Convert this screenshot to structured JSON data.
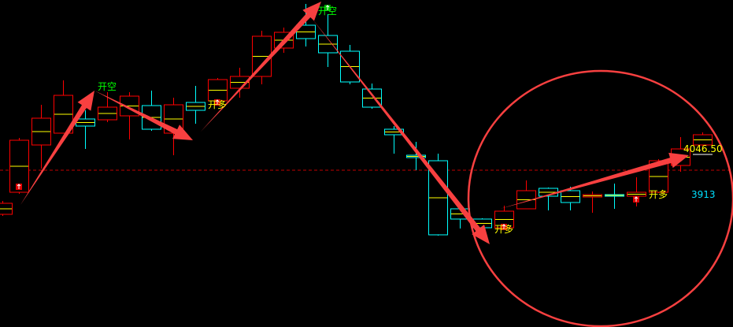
{
  "chart_data": {
    "type": "candlestick",
    "title": "",
    "ylim": [
      3828,
      4243
    ],
    "grid": false,
    "colors": {
      "up": "#ff0000",
      "down": "#00ffff",
      "mid": "#ffff00",
      "reference_line": "#c00000",
      "arrow": "#f84040"
    },
    "reference_price": 4027,
    "candles": [
      {
        "o": 3971,
        "h": 3988,
        "l": 3969,
        "c": 3985
      },
      {
        "o": 3999,
        "h": 4068,
        "l": 3997,
        "c": 4065
      },
      {
        "o": 4059,
        "h": 4110,
        "l": 4029,
        "c": 4093
      },
      {
        "o": 4074,
        "h": 4141,
        "l": 4074,
        "c": 4122
      },
      {
        "o": 4092,
        "h": 4103,
        "l": 4054,
        "c": 4083
      },
      {
        "o": 4091,
        "h": 4126,
        "l": 4088,
        "c": 4107
      },
      {
        "o": 4096,
        "h": 4126,
        "l": 4066,
        "c": 4121
      },
      {
        "o": 4109,
        "h": 4128,
        "l": 4077,
        "c": 4079
      },
      {
        "o": 4074,
        "h": 4119,
        "l": 4046,
        "c": 4110
      },
      {
        "o": 4113,
        "h": 4134,
        "l": 4086,
        "c": 4103
      },
      {
        "o": 4115,
        "h": 4144,
        "l": 4112,
        "c": 4142
      },
      {
        "o": 4131,
        "h": 4157,
        "l": 4119,
        "c": 4146
      },
      {
        "o": 4146,
        "h": 4204,
        "l": 4136,
        "c": 4197
      },
      {
        "o": 4182,
        "h": 4208,
        "l": 4176,
        "c": 4202
      },
      {
        "o": 4211,
        "h": 4238,
        "l": 4184,
        "c": 4194
      },
      {
        "o": 4198,
        "h": 4225,
        "l": 4158,
        "c": 4176
      },
      {
        "o": 4178,
        "h": 4186,
        "l": 4136,
        "c": 4139
      },
      {
        "o": 4130,
        "h": 4137,
        "l": 4105,
        "c": 4107
      },
      {
        "o": 4079,
        "h": 4083,
        "l": 4048,
        "c": 4072
      },
      {
        "o": 4046,
        "h": 4063,
        "l": 4027,
        "c": 4043
      },
      {
        "o": 4039,
        "h": 4048,
        "l": 3944,
        "c": 3945
      },
      {
        "o": 3978,
        "h": 3978,
        "l": 3953,
        "c": 3965
      },
      {
        "o": 3965,
        "h": 3966,
        "l": 3952,
        "c": 3954
      },
      {
        "o": 3954,
        "h": 3982,
        "l": 3953,
        "c": 3975
      },
      {
        "o": 3978,
        "h": 4014,
        "l": 3978,
        "c": 4001
      },
      {
        "o": 4004,
        "h": 4005,
        "l": 3976,
        "c": 3994
      },
      {
        "o": 4001,
        "h": 4006,
        "l": 3976,
        "c": 3986
      },
      {
        "o": 3993,
        "h": 4000,
        "l": 3973,
        "c": 3996
      },
      {
        "o": 3996,
        "h": 4010,
        "l": 3978,
        "c": 3994
      },
      {
        "o": 3994,
        "h": 4018,
        "l": 3981,
        "c": 3999
      },
      {
        "o": 3999,
        "h": 4041,
        "l": 3998,
        "c": 4039
      },
      {
        "o": 4033,
        "h": 4069,
        "l": 4025,
        "c": 4054
      },
      {
        "o": 4059,
        "h": 4075,
        "l": 4058,
        "c": 4072
      }
    ],
    "signals": [
      {
        "candle": 4,
        "text": "开空",
        "color": "#00ff00"
      },
      {
        "candle": 15,
        "text": "开空",
        "color": "#00ff00"
      },
      {
        "candle": 10,
        "text": "开多",
        "color": "#ffff00"
      },
      {
        "candle": 23,
        "text": "开多",
        "color": "#ffff00"
      },
      {
        "candle": 30,
        "text": "开多",
        "color": "#ffff00"
      }
    ],
    "price_label": "4046.50",
    "side_value": "3913"
  }
}
